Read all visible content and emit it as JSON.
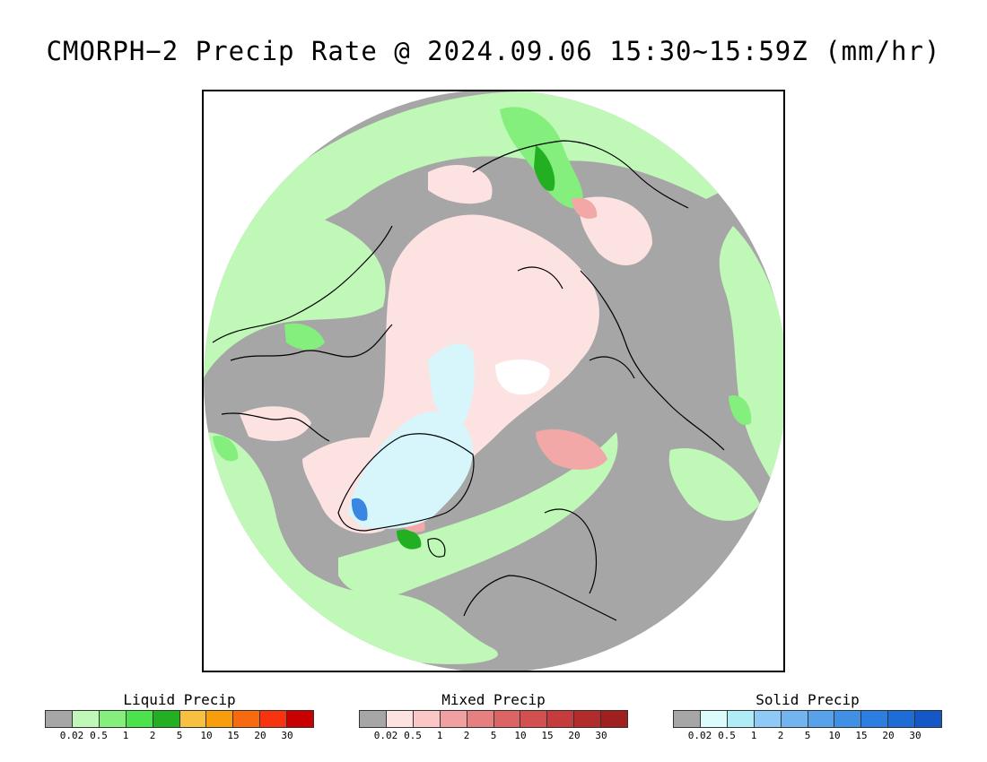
{
  "title": "CMORPH−2 Precip Rate @ 2024.09.06 15:30~15:59Z (mm/hr)",
  "map": {
    "projection": "north-polar-stereographic",
    "colors": {
      "no_data": "#a6a6a6",
      "coastline": "#000000",
      "liquid_light": "#c0f8b8",
      "liquid_mid": "#84ef7c",
      "liquid_heavy": "#22b022",
      "mixed_light": "#fde2e2",
      "mixed_mid": "#f3a8a8",
      "solid_light": "#d6f6fb",
      "solid_mid": "#8ecaf5",
      "solid_heavy": "#3a86e0",
      "no_precip_ice": "#ffffff"
    }
  },
  "legends": [
    {
      "title": "Liquid Precip",
      "colors": [
        "#a6a6a6",
        "#c0f8b8",
        "#84ef7c",
        "#4ce24c",
        "#22b022",
        "#f8c040",
        "#f89e0c",
        "#f86a10",
        "#f83410",
        "#c80000"
      ],
      "ticks": [
        "0.02",
        "0.5",
        "1",
        "2",
        "5",
        "10",
        "15",
        "20",
        "30"
      ]
    },
    {
      "title": "Mixed Precip",
      "colors": [
        "#a6a6a6",
        "#fde2e2",
        "#fbc6c6",
        "#f0a0a0",
        "#e68080",
        "#dc6464",
        "#d25050",
        "#c43c3c",
        "#b22c2c",
        "#a02020"
      ],
      "ticks": [
        "0.02",
        "0.5",
        "1",
        "2",
        "5",
        "10",
        "15",
        "20",
        "30"
      ]
    },
    {
      "title": "Solid Precip",
      "colors": [
        "#a6a6a6",
        "#dcfcfc",
        "#b0ecf8",
        "#8ecaf5",
        "#72b4f0",
        "#58a2ec",
        "#4090e6",
        "#2c7ee0",
        "#1e6cd6",
        "#1458c8"
      ],
      "ticks": [
        "0.02",
        "0.5",
        "1",
        "2",
        "5",
        "10",
        "15",
        "20",
        "30"
      ]
    }
  ]
}
